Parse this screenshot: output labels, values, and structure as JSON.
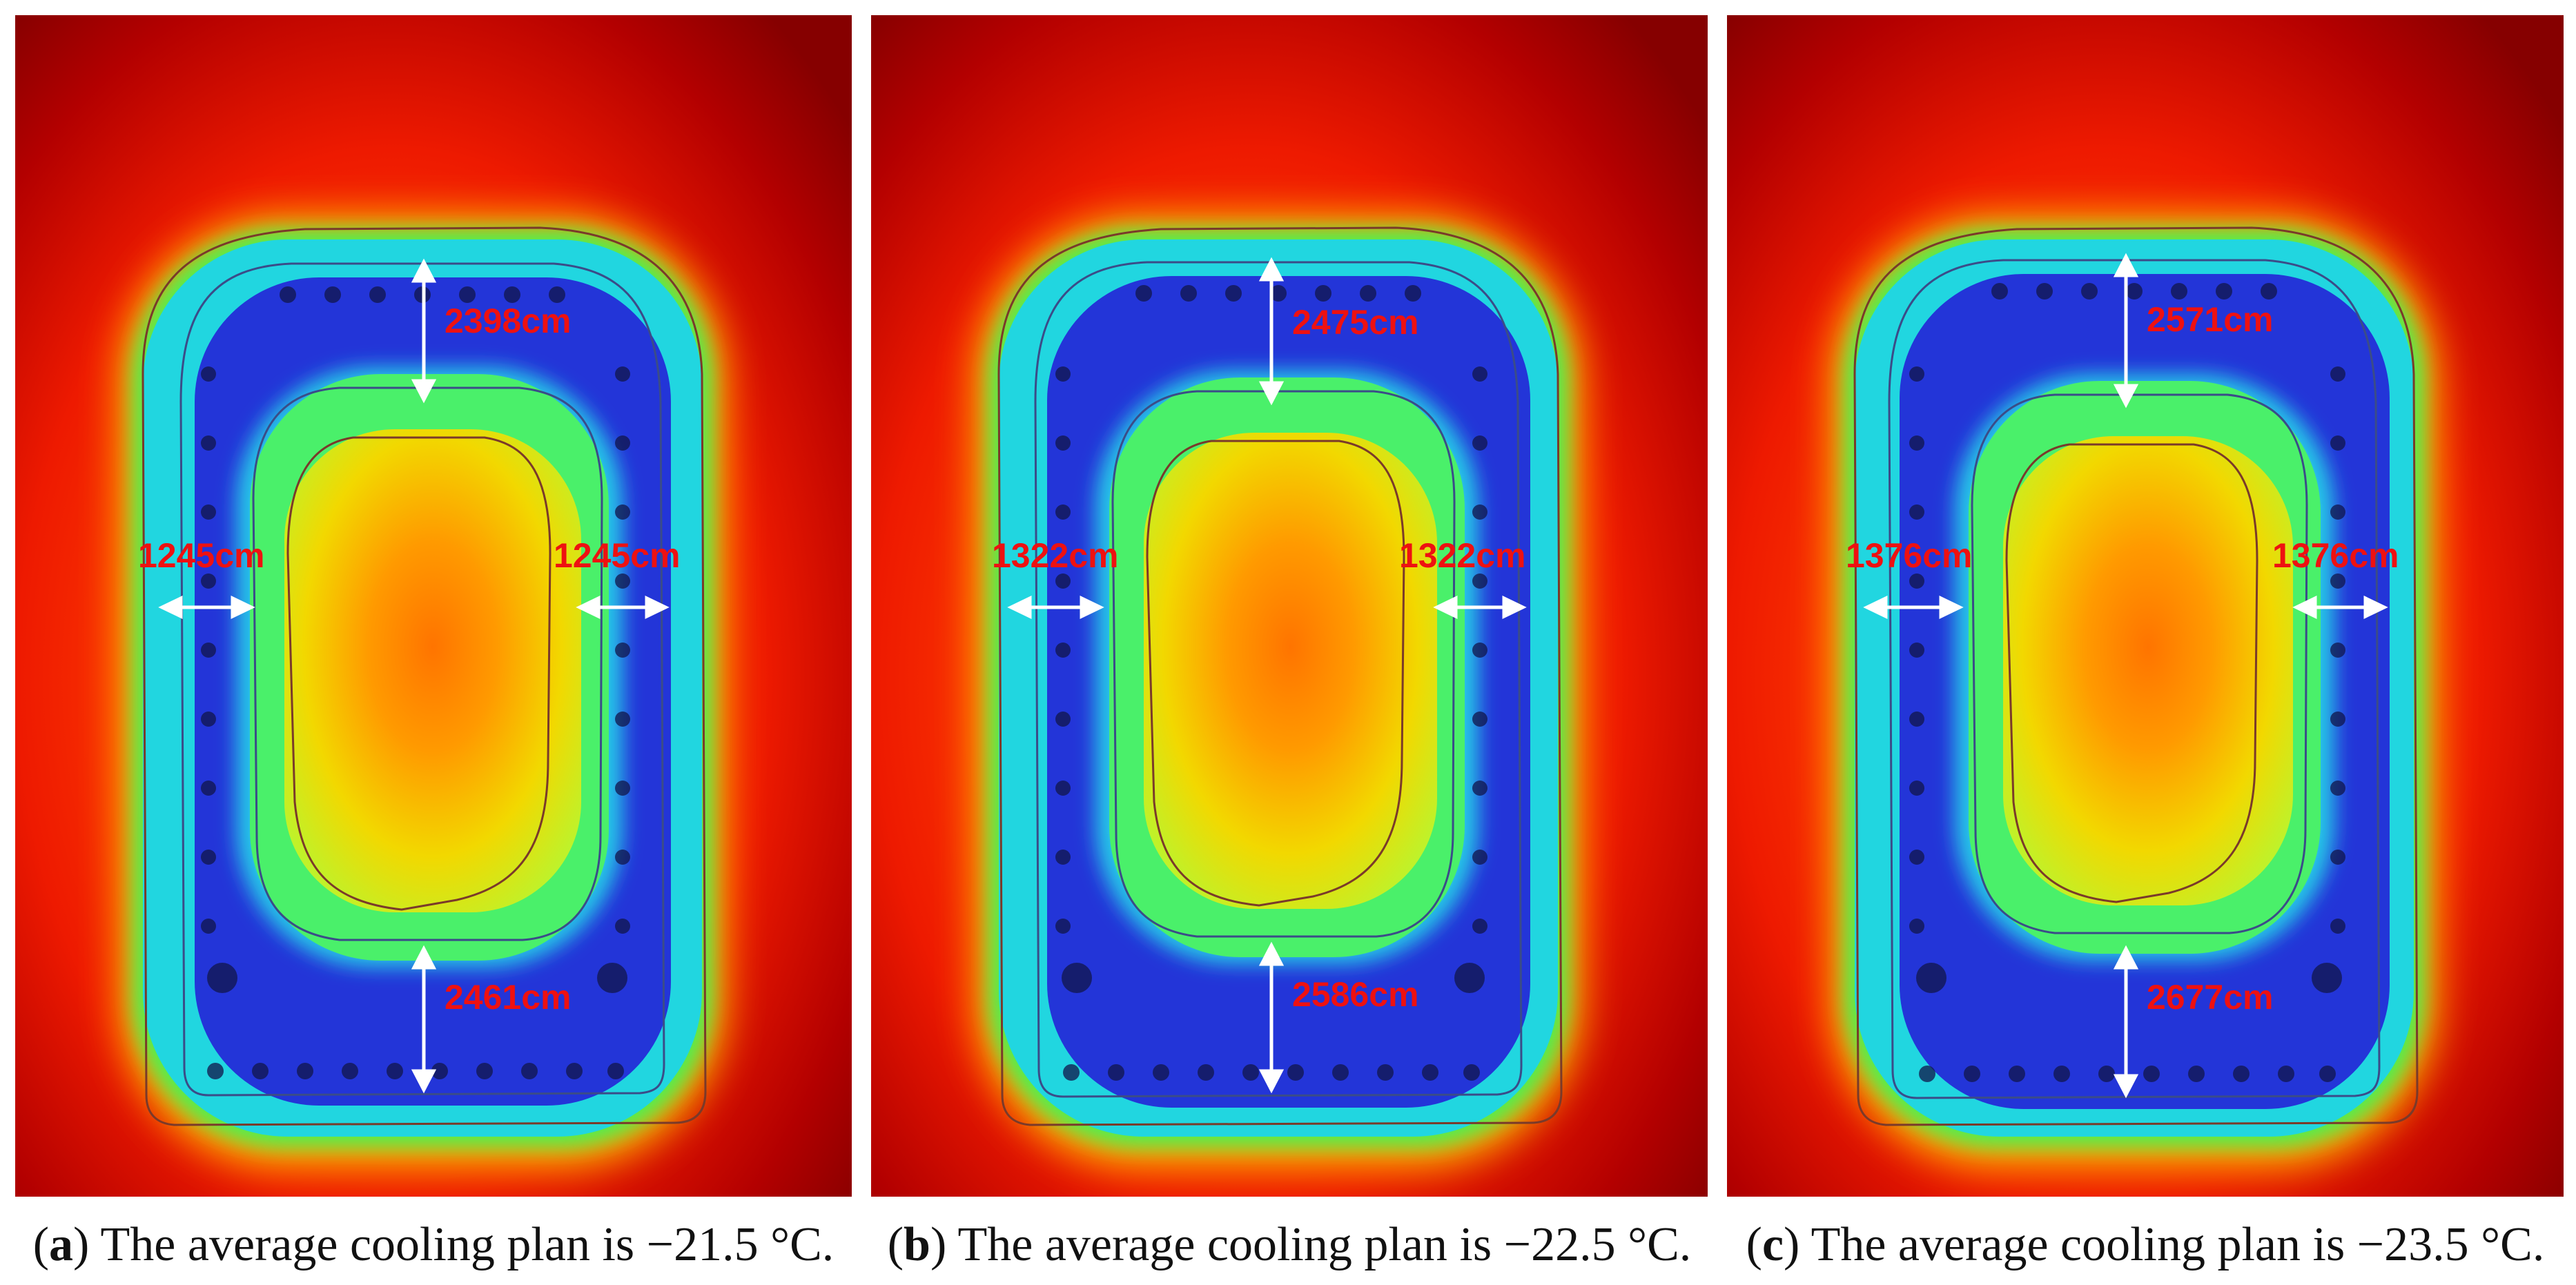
{
  "figure": {
    "panels": [
      {
        "caption_open": "(",
        "letter": "a",
        "caption_text": ") The average cooling plan is −21.5 °C.",
        "labels": {
          "top": "2398cm",
          "bottom": "2461cm",
          "left": "1245cm",
          "right": "1245cm"
        }
      },
      {
        "caption_open": "(",
        "letter": "b",
        "caption_text": ") The average cooling plan is −22.5 °C.",
        "labels": {
          "top": "2475cm",
          "bottom": "2586cm",
          "left": "1322cm",
          "right": "1322cm"
        }
      },
      {
        "caption_open": "(",
        "letter": "c",
        "caption_text": ") The average cooling plan is −23.5 °C.",
        "labels": {
          "top": "2571cm",
          "bottom": "2677cm",
          "left": "1376cm",
          "right": "1376cm"
        }
      }
    ],
    "colors": {
      "background_hot": "#8b0000",
      "label_red": "#ee1111",
      "arrow": "#ffffff",
      "frozen_blue": "#2a2fcf",
      "core_orange": "#ff7a00",
      "core_yellow": "#d9ef1a",
      "contour_line": "#7a3a2a"
    }
  }
}
